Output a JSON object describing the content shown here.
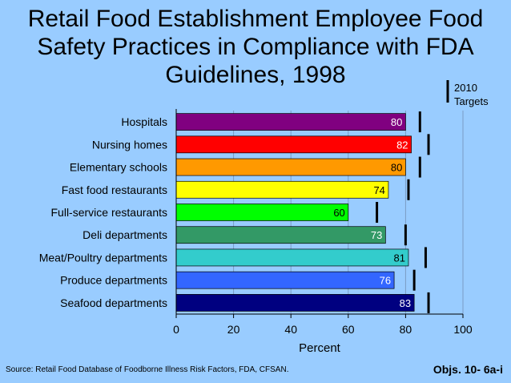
{
  "chart_data": {
    "type": "bar",
    "orientation": "horizontal",
    "title_lines": [
      "Retail Food Establishment Employee Food",
      "Safety Practices in Compliance with FDA",
      "Guidelines, 1998"
    ],
    "categories": [
      "Hospitals",
      "Nursing homes",
      "Elementary schools",
      "Fast food restaurants",
      "Full-service restaurants",
      "Deli departments",
      "Meat/Poultry departments",
      "Produce departments",
      "Seafood departments"
    ],
    "values": [
      80,
      82,
      80,
      74,
      60,
      73,
      81,
      76,
      83
    ],
    "value_labels": [
      "80",
      "82",
      "80",
      "74",
      "60",
      "73",
      "81",
      "76",
      "83"
    ],
    "targets": [
      85,
      88,
      85,
      81,
      70,
      80,
      87,
      83,
      88
    ],
    "target_legend": [
      "2010",
      "Targets"
    ],
    "bar_colors": [
      "#800080",
      "#ff0000",
      "#ff9900",
      "#ffff00",
      "#00ff00",
      "#339966",
      "#33cccc",
      "#3366ff",
      "#000080"
    ],
    "value_label_colors": [
      "#ffffff",
      "#ffffff",
      "#000000",
      "#000000",
      "#000000",
      "#ffffff",
      "#000000",
      "#ffffff",
      "#ffffff"
    ],
    "xlabel": "Percent",
    "xlim": [
      0,
      100
    ],
    "xticks": [
      0,
      20,
      40,
      60,
      80,
      100
    ],
    "xtick_labels": [
      "0",
      "20",
      "40",
      "60",
      "80",
      "100"
    ],
    "legend_position": "top-right"
  },
  "footer": {
    "source": "Source: Retail Food Database of Foodborne Illness Risk Factors, FDA, CFSAN.",
    "objectives": "Objs. 10- 6a-i"
  }
}
